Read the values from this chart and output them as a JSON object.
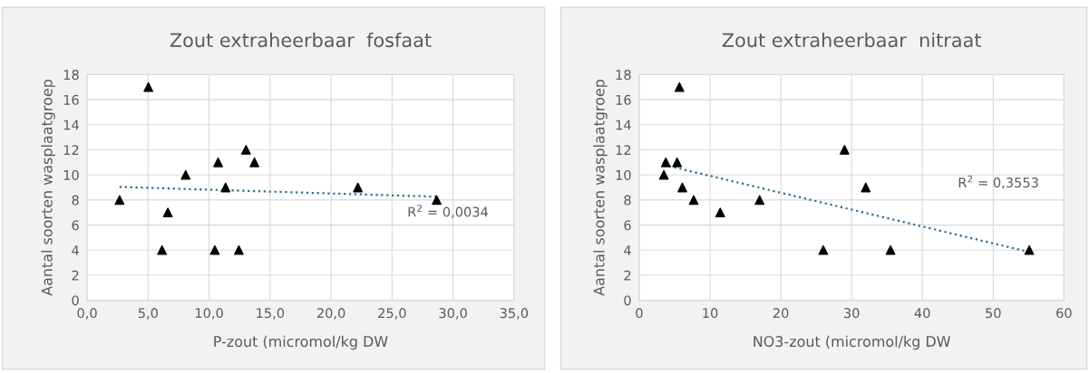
{
  "chart_data": [
    {
      "type": "scatter",
      "title": "Zout extraheerbaar  fosfaat",
      "xlabel": "P-zout (micromol/kg DW",
      "ylabel": "Aantal soorten wasplaatgroep",
      "xlim": [
        0,
        35
      ],
      "xticks": [
        {
          "value": 0,
          "label": "0,0"
        },
        {
          "value": 5,
          "label": "5,0"
        },
        {
          "value": 10,
          "label": "10,0"
        },
        {
          "value": 15,
          "label": "15,0"
        },
        {
          "value": 20,
          "label": "20,0"
        },
        {
          "value": 25,
          "label": "25,0"
        },
        {
          "value": 30,
          "label": "30,0"
        },
        {
          "value": 35,
          "label": "35,0"
        }
      ],
      "ylim": [
        0,
        18
      ],
      "yticks": [
        0,
        2,
        4,
        6,
        8,
        10,
        12,
        14,
        16,
        18
      ],
      "grid": true,
      "marker": "triangle",
      "series": [
        {
          "color": "#000000",
          "x": [
            2.66,
            5.02,
            6.62,
            6.14,
            8.08,
            10.47,
            10.74,
            11.35,
            12.44,
            13.03,
            13.72,
            22.2,
            28.66
          ],
          "values": [
            8,
            17,
            7,
            4,
            10,
            4,
            11,
            9,
            4,
            12,
            11,
            9,
            8
          ]
        },
        {
          "type": "line",
          "color": "#2e6b8a",
          "line_style": "dotted",
          "marker": "none",
          "x": [
            2.66,
            28.66
          ],
          "values": [
            9.04,
            8.26
          ]
        }
      ],
      "annotations": [
        "R$^{2}$ = 0,0034"
      ]
    },
    {
      "type": "scatter",
      "title": "Zout extraheerbaar  nitraat",
      "xlabel": "NO3-zout (micromol/kg DW",
      "ylabel": "Aantal soorten wasplaatgroep",
      "xlim": [
        0,
        60
      ],
      "xticks": [
        0,
        10,
        20,
        30,
        40,
        50,
        60
      ],
      "ylim": [
        0,
        18
      ],
      "yticks": [
        0,
        2,
        4,
        6,
        8,
        10,
        12,
        14,
        16,
        18
      ],
      "grid": true,
      "marker": "triangle",
      "series": [
        {
          "color": "#000000",
          "x": [
            3.48,
            3.75,
            5.35,
            5.68,
            6.09,
            7.69,
            11.44,
            17.0,
            26.0,
            29.0,
            32.0,
            35.5,
            55.1
          ],
          "values": [
            10,
            11,
            11,
            17,
            9,
            8,
            7,
            8,
            4,
            12,
            9,
            4,
            4
          ]
        },
        {
          "type": "line",
          "color": "#2e6b8a",
          "line_style": "dotted",
          "marker": "none",
          "x": [
            3.48,
            55.1
          ],
          "values": [
            10.8,
            3.85
          ]
        }
      ],
      "annotations": [
        "R$^{2}$ = 0,3553"
      ]
    }
  ]
}
